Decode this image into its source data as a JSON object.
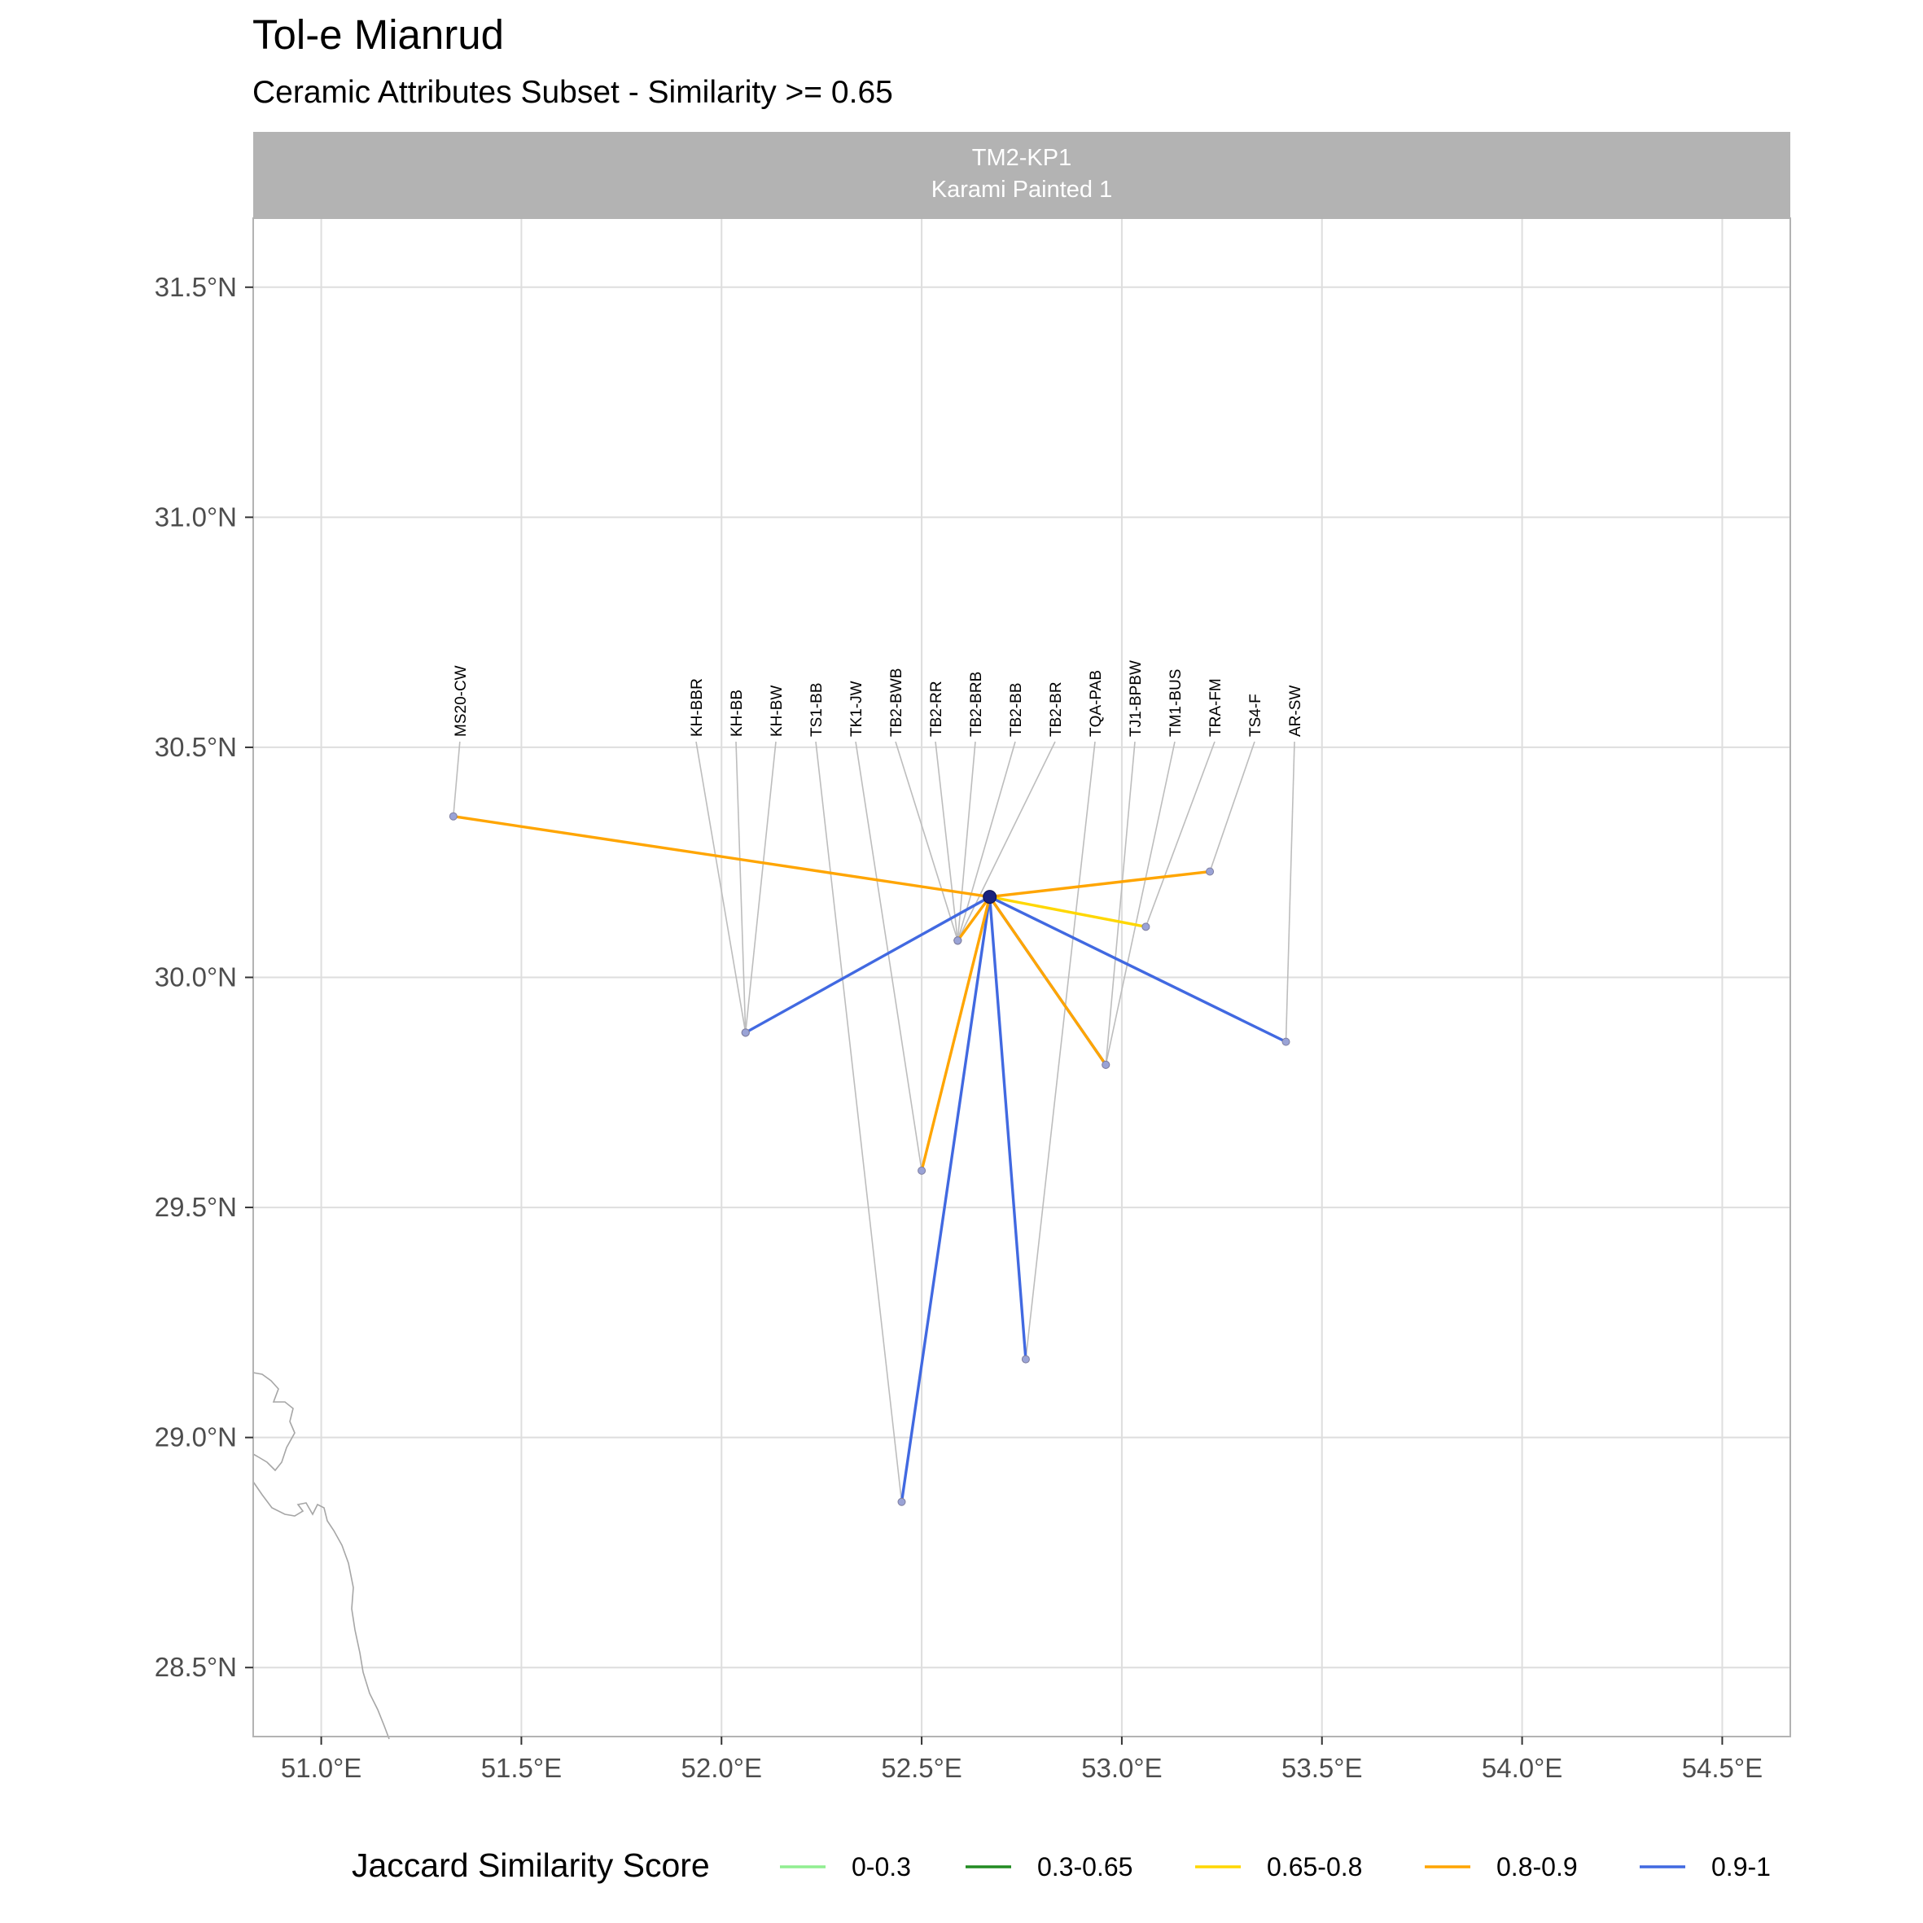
{
  "title": "Tol-e Mianrud",
  "subtitle": "Ceramic Attributes Subset - Similarity >= 0.65",
  "facet_strip": {
    "line1": "TM2-KP1",
    "line2": "Karami Painted 1"
  },
  "legend": {
    "title": "Jaccard Similarity Score",
    "items": [
      {
        "label": "0-0.3",
        "color": "#90ee90"
      },
      {
        "label": "0.3-0.65",
        "color": "#228b22"
      },
      {
        "label": "0.65-0.8",
        "color": "#ffd700"
      },
      {
        "label": "0.8-0.9",
        "color": "#ffa500"
      },
      {
        "label": "0.9-1",
        "color": "#4169e1"
      }
    ]
  },
  "chart_data": {
    "type": "map",
    "x_ticks": [
      "51.0°E",
      "51.5°E",
      "52.0°E",
      "52.5°E",
      "53.0°E",
      "53.5°E",
      "54.0°E",
      "54.5°E"
    ],
    "x_tick_values": [
      51.0,
      51.5,
      52.0,
      52.5,
      53.0,
      53.5,
      54.0,
      54.5
    ],
    "y_ticks": [
      "28.5°N",
      "29.0°N",
      "29.5°N",
      "30.0°N",
      "30.5°N",
      "31.0°N",
      "31.5°N"
    ],
    "y_tick_values": [
      28.5,
      29.0,
      29.5,
      30.0,
      30.5,
      31.0,
      31.5
    ],
    "xlim": [
      50.83,
      54.67
    ],
    "ylim": [
      28.35,
      31.65
    ],
    "grid": true,
    "legend_position": "bottom",
    "focus_site": {
      "name": "TM2-KP1",
      "lon": 52.67,
      "lat": 30.175
    },
    "sites": [
      {
        "label": "MS20-CW",
        "lon": 51.33,
        "lat": 30.35,
        "similarity_class": "0.8-0.9"
      },
      {
        "label": "KH-BBR",
        "lon": 52.06,
        "lat": 29.88,
        "similarity_class": "0.9-1"
      },
      {
        "label": "KH-BB",
        "lon": 52.06,
        "lat": 29.88,
        "similarity_class": "0.9-1"
      },
      {
        "label": "KH-BW",
        "lon": 52.06,
        "lat": 29.88,
        "similarity_class": "0.9-1"
      },
      {
        "label": "TS1-BB",
        "lon": 52.45,
        "lat": 28.86,
        "similarity_class": "0.9-1"
      },
      {
        "label": "TK1-JW",
        "lon": 52.5,
        "lat": 29.58,
        "similarity_class": "0.8-0.9"
      },
      {
        "label": "TB2-BWB",
        "lon": 52.59,
        "lat": 30.08,
        "similarity_class": "0.8-0.9"
      },
      {
        "label": "TB2-RR",
        "lon": 52.59,
        "lat": 30.08,
        "similarity_class": "0.8-0.9"
      },
      {
        "label": "TB2-BRB",
        "lon": 52.59,
        "lat": 30.08,
        "similarity_class": "0.8-0.9"
      },
      {
        "label": "TB2-BB",
        "lon": 52.59,
        "lat": 30.08,
        "similarity_class": "0.8-0.9"
      },
      {
        "label": "TB2-BR",
        "lon": 52.59,
        "lat": 30.08,
        "similarity_class": "0.8-0.9"
      },
      {
        "label": "TQA-PAB",
        "lon": 52.76,
        "lat": 29.17,
        "similarity_class": "0.9-1"
      },
      {
        "label": "TJ1-BPBW",
        "lon": 52.96,
        "lat": 29.81,
        "similarity_class": "0.9-1"
      },
      {
        "label": "TM1-BUS",
        "lon": 52.96,
        "lat": 29.81,
        "similarity_class": "0.8-0.9"
      },
      {
        "label": "TRA-FM",
        "lon": 53.06,
        "lat": 30.11,
        "similarity_class": "0.65-0.8"
      },
      {
        "label": "TS4-F",
        "lon": 53.22,
        "lat": 30.23,
        "similarity_class": "0.8-0.9"
      },
      {
        "label": "AR-SW",
        "lon": 53.41,
        "lat": 29.86,
        "similarity_class": "0.9-1"
      }
    ]
  }
}
